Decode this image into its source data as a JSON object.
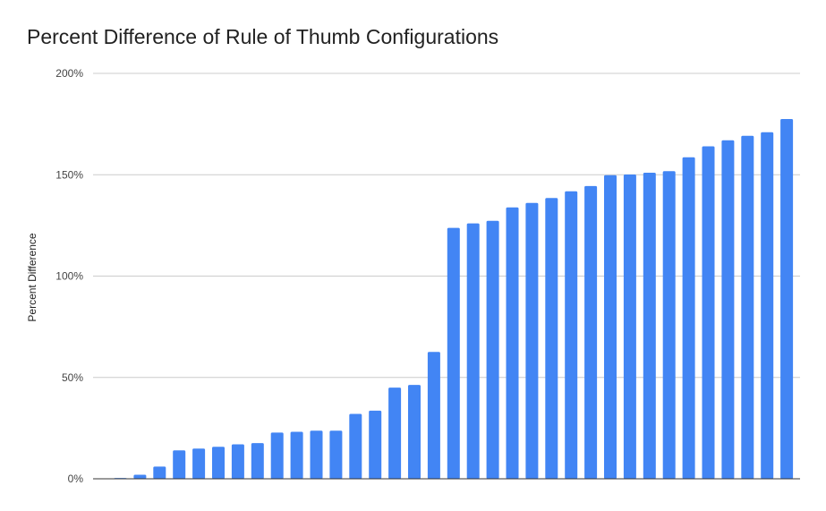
{
  "chart_data": {
    "type": "bar",
    "title": "Percent Difference of Rule of Thumb Configurations",
    "xlabel": "",
    "ylabel": "Percent Difference",
    "ylim": [
      0,
      200
    ],
    "yticks": [
      "0%",
      "50%",
      "100%",
      "150%",
      "200%"
    ],
    "grid": true,
    "bar_color": "#4285f4",
    "values": [
      0.4,
      2.0,
      6.0,
      14.0,
      14.9,
      15.8,
      17.0,
      17.6,
      22.8,
      23.2,
      23.7,
      23.7,
      32.0,
      33.6,
      45.0,
      46.3,
      62.6,
      123.8,
      126.0,
      127.3,
      133.9,
      136.1,
      138.5,
      141.8,
      144.4,
      149.8,
      150.1,
      151.0,
      151.8,
      158.6,
      164.0,
      167.0,
      169.2,
      171.0,
      177.5
    ]
  }
}
